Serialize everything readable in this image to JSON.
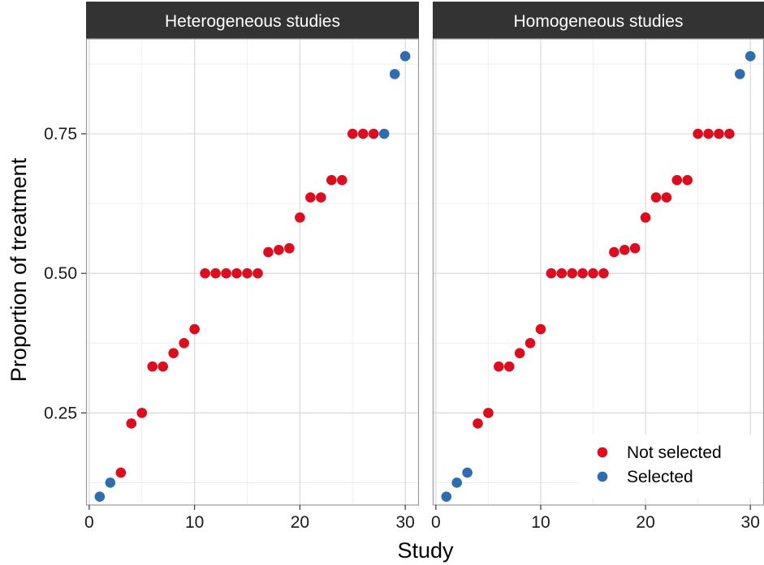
{
  "colors": {
    "not_selected": "#DC0D1F",
    "selected": "#2F6DB0",
    "strip_bg": "#333333",
    "grid_major": "#D9D9D9",
    "grid_minor": "#EFEFEF",
    "panel_border": "#9A9A9A"
  },
  "chart_data": {
    "type": "scatter",
    "xlabel": "Study",
    "ylabel": "Proportion of treatment",
    "xlim": [
      -0.3,
      31.3
    ],
    "ylim": [
      0.085,
      0.92
    ],
    "x_ticks": [
      0,
      10,
      20,
      30
    ],
    "y_ticks": [
      0.25,
      0.5,
      0.75
    ],
    "y_tick_labels": [
      "0.25",
      "0.50",
      "0.75"
    ],
    "grid": true,
    "legend": {
      "position": "bottom-right (inside right panel)",
      "entries": [
        {
          "key": "not_selected",
          "label": "Not selected"
        },
        {
          "key": "selected",
          "label": "Selected"
        }
      ]
    },
    "panels": [
      {
        "title": "Heterogeneous studies",
        "x": [
          1,
          2,
          3,
          4,
          5,
          6,
          7,
          8,
          9,
          10,
          11,
          12,
          13,
          14,
          15,
          16,
          17,
          18,
          19,
          20,
          21,
          22,
          23,
          24,
          25,
          26,
          27,
          28,
          29,
          30
        ],
        "y": [
          0.1,
          0.125,
          0.143,
          0.231,
          0.25,
          0.333,
          0.333,
          0.357,
          0.375,
          0.4,
          0.5,
          0.5,
          0.5,
          0.5,
          0.5,
          0.5,
          0.538,
          0.542,
          0.545,
          0.6,
          0.636,
          0.636,
          0.667,
          0.667,
          0.75,
          0.75,
          0.75,
          0.75,
          0.857,
          0.889
        ],
        "group": [
          "selected",
          "selected",
          "not_selected",
          "not_selected",
          "not_selected",
          "not_selected",
          "not_selected",
          "not_selected",
          "not_selected",
          "not_selected",
          "not_selected",
          "not_selected",
          "not_selected",
          "not_selected",
          "not_selected",
          "not_selected",
          "not_selected",
          "not_selected",
          "not_selected",
          "not_selected",
          "not_selected",
          "not_selected",
          "not_selected",
          "not_selected",
          "not_selected",
          "not_selected",
          "not_selected",
          "selected",
          "selected",
          "selected"
        ]
      },
      {
        "title": "Homogeneous studies",
        "x": [
          1,
          2,
          3,
          4,
          5,
          6,
          7,
          8,
          9,
          10,
          11,
          12,
          13,
          14,
          15,
          16,
          17,
          18,
          19,
          20,
          21,
          22,
          23,
          24,
          25,
          26,
          27,
          28,
          29,
          30
        ],
        "y": [
          0.1,
          0.125,
          0.143,
          0.231,
          0.25,
          0.333,
          0.333,
          0.357,
          0.375,
          0.4,
          0.5,
          0.5,
          0.5,
          0.5,
          0.5,
          0.5,
          0.538,
          0.542,
          0.545,
          0.6,
          0.636,
          0.636,
          0.667,
          0.667,
          0.75,
          0.75,
          0.75,
          0.75,
          0.857,
          0.889
        ],
        "group": [
          "selected",
          "selected",
          "selected",
          "not_selected",
          "not_selected",
          "not_selected",
          "not_selected",
          "not_selected",
          "not_selected",
          "not_selected",
          "not_selected",
          "not_selected",
          "not_selected",
          "not_selected",
          "not_selected",
          "not_selected",
          "not_selected",
          "not_selected",
          "not_selected",
          "not_selected",
          "not_selected",
          "not_selected",
          "not_selected",
          "not_selected",
          "not_selected",
          "not_selected",
          "not_selected",
          "not_selected",
          "selected",
          "selected"
        ]
      }
    ]
  }
}
